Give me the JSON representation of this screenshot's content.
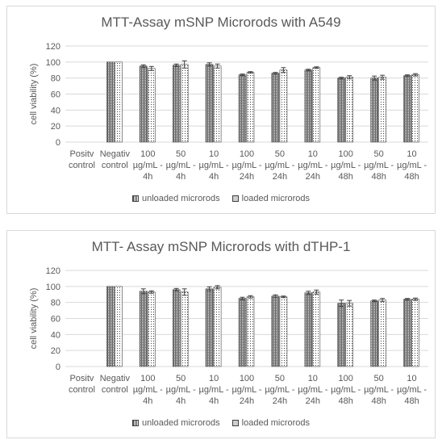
{
  "chart_data": [
    {
      "type": "bar",
      "title": "MTT-Assay mSNP Microrods with A549",
      "ylabel": "cell viability (%)",
      "xlabel": "",
      "ylim": [
        0,
        120
      ],
      "yticks": [
        0,
        20,
        40,
        60,
        80,
        100,
        120
      ],
      "grid": true,
      "legend_position": "bottom",
      "categories": [
        [
          "Positv",
          "control"
        ],
        [
          "Negativ",
          "control"
        ],
        [
          "100",
          "µg/mL -",
          "4h"
        ],
        [
          "50",
          "µg/mL -",
          "4h"
        ],
        [
          "10",
          "µg/mL -",
          "4h"
        ],
        [
          "100",
          "µg/mL -",
          "24h"
        ],
        [
          "50",
          "µg/mL -",
          "24h"
        ],
        [
          "10",
          "µg/mL -",
          "24h"
        ],
        [
          "100",
          "µg/mL -",
          "48h"
        ],
        [
          "50",
          "µg/mL -",
          "48h"
        ],
        [
          "10",
          "µg/mL -",
          "48h"
        ]
      ],
      "series": [
        {
          "name": "unloaded microrods",
          "pattern": "grid",
          "values": [
            0,
            100,
            95,
            96,
            97,
            84,
            86,
            90,
            80,
            80,
            83
          ],
          "errors": [
            0,
            0,
            1.5,
            1.5,
            2,
            1,
            1,
            1,
            1,
            2.5,
            1
          ]
        },
        {
          "name": "loaded microrods",
          "pattern": "dots",
          "values": [
            0,
            100,
            92,
            97,
            95,
            87,
            90,
            93,
            81,
            81,
            84
          ],
          "errors": [
            0,
            0,
            2.5,
            4.5,
            2.5,
            1,
            3,
            1,
            2,
            2.5,
            1.5
          ]
        }
      ]
    },
    {
      "type": "bar",
      "title": "MTT- Assay mSNP Microrods with dTHP-1",
      "ylabel": "cell viability (%)",
      "xlabel": "",
      "ylim": [
        0,
        120
      ],
      "yticks": [
        0,
        20,
        40,
        60,
        80,
        100,
        120
      ],
      "grid": true,
      "legend_position": "bottom",
      "categories": [
        [
          "Positv",
          "control"
        ],
        [
          "Negativ",
          "control"
        ],
        [
          "100",
          "µg/mL -",
          "4h"
        ],
        [
          "50",
          "µg/mL -",
          "4h"
        ],
        [
          "10",
          "µg/mL -",
          "4h"
        ],
        [
          "100",
          "µg/mL -",
          "24h"
        ],
        [
          "50",
          "µg/mL -",
          "24h"
        ],
        [
          "10",
          "µg/mL -",
          "24h"
        ],
        [
          "100",
          "µg/mL -",
          "48h"
        ],
        [
          "50",
          "µg/mL -",
          "48h"
        ],
        [
          "10",
          "µg/mL -",
          "48h"
        ]
      ],
      "series": [
        {
          "name": "unloaded microrods",
          "pattern": "grid",
          "values": [
            0,
            100,
            94,
            96,
            97,
            85,
            88,
            92,
            79,
            82,
            84
          ],
          "errors": [
            0,
            0,
            3,
            1.5,
            2.5,
            1.5,
            1.5,
            2,
            4,
            1,
            1
          ]
        },
        {
          "name": "loaded microrods",
          "pattern": "dots",
          "values": [
            0,
            100,
            93,
            93,
            99,
            87,
            87,
            93,
            79,
            83,
            84
          ],
          "errors": [
            0,
            0,
            1.5,
            4,
            2,
            1.5,
            1,
            2.5,
            3.5,
            2,
            1.5
          ]
        }
      ]
    }
  ]
}
